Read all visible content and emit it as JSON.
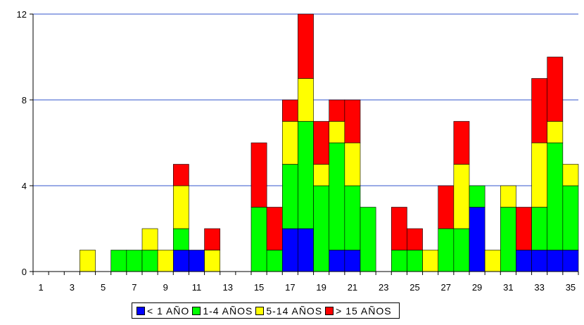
{
  "chart_data": {
    "type": "bar",
    "stacked": true,
    "xlabel": "",
    "ylabel": "",
    "ylim": [
      0,
      12
    ],
    "y_ticks": [
      "0",
      "4",
      "8",
      "12"
    ],
    "x_tick_labels": [
      "1",
      "3",
      "5",
      "7",
      "9",
      "11",
      "13",
      "15",
      "17",
      "19",
      "21",
      "23",
      "25",
      "27",
      "29",
      "31",
      "33",
      "35"
    ],
    "grid": "horizontal",
    "legend_position": "bottom",
    "categories": [
      "1",
      "2",
      "3",
      "4",
      "5",
      "6",
      "7",
      "8",
      "9",
      "10",
      "11",
      "12",
      "13",
      "14",
      "15",
      "16",
      "17",
      "18",
      "19",
      "20",
      "21",
      "22",
      "23",
      "24",
      "25",
      "26",
      "27",
      "28",
      "29",
      "30",
      "31",
      "32",
      "33",
      "34",
      "35"
    ],
    "series": [
      {
        "name": "< 1 AÑO",
        "color": "#0000FF",
        "values": [
          0,
          0,
          0,
          0,
          0,
          0,
          0,
          0,
          0,
          1,
          1,
          0,
          0,
          0,
          0,
          0,
          2,
          2,
          0,
          1,
          1,
          0,
          0,
          0,
          0,
          0,
          0,
          0,
          3,
          0,
          0,
          1,
          1,
          1,
          1
        ]
      },
      {
        "name": "1-4 AÑOS",
        "color": "#00FF00",
        "values": [
          0,
          0,
          0,
          0,
          0,
          1,
          1,
          1,
          0,
          1,
          0,
          0,
          0,
          0,
          3,
          1,
          3,
          5,
          4,
          5,
          3,
          3,
          0,
          1,
          1,
          0,
          2,
          2,
          1,
          0,
          3,
          0,
          2,
          5,
          3
        ]
      },
      {
        "name": "5-14 AÑOS",
        "color": "#FFFF00",
        "values": [
          0,
          0,
          0,
          1,
          0,
          0,
          0,
          1,
          1,
          2,
          0,
          1,
          0,
          0,
          0,
          0,
          2,
          2,
          1,
          1,
          2,
          0,
          0,
          0,
          0,
          1,
          0,
          3,
          0,
          1,
          1,
          0,
          3,
          1,
          1
        ]
      },
      {
        "name": "> 15 AÑOS",
        "color": "#FF0000",
        "values": [
          0,
          0,
          0,
          0,
          0,
          0,
          0,
          0,
          0,
          1,
          0,
          1,
          0,
          0,
          3,
          2,
          1,
          3,
          2,
          1,
          2,
          0,
          0,
          2,
          1,
          0,
          2,
          2,
          0,
          0,
          0,
          2,
          3,
          3,
          0
        ]
      }
    ]
  },
  "colors": {
    "gridline": "#3355CC",
    "axis": "#000000",
    "bar_outline": "#000000"
  }
}
